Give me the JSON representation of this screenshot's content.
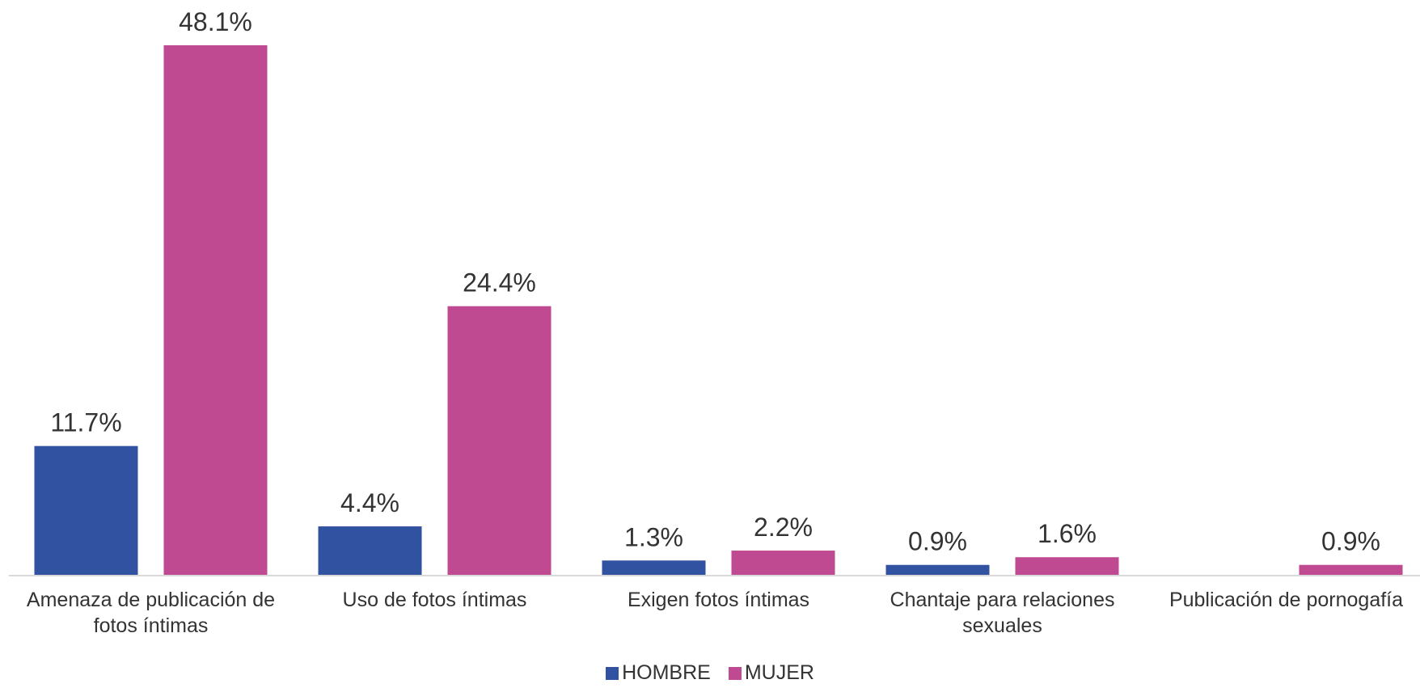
{
  "chart_data": {
    "type": "bar",
    "categories": [
      "Amenaza de publicación de fotos íntimas",
      "Uso de fotos íntimas",
      "Exigen fotos íntimas",
      "Chantaje para relaciones sexuales",
      "Publicación de pornogafía"
    ],
    "series": [
      {
        "name": "HOMBRE",
        "color": "#3152a0",
        "values": [
          11.7,
          4.4,
          1.3,
          0.9,
          null
        ],
        "value_labels": [
          "11.7%",
          "4.4%",
          "1.3%",
          "0.9%",
          null
        ]
      },
      {
        "name": "MUJER",
        "color": "#c04a92",
        "values": [
          48.1,
          24.4,
          2.2,
          1.6,
          0.9
        ],
        "value_labels": [
          "48.1%",
          "24.4%",
          "2.2%",
          "1.6%",
          "0.9%"
        ]
      }
    ],
    "legend": "bottom"
  }
}
